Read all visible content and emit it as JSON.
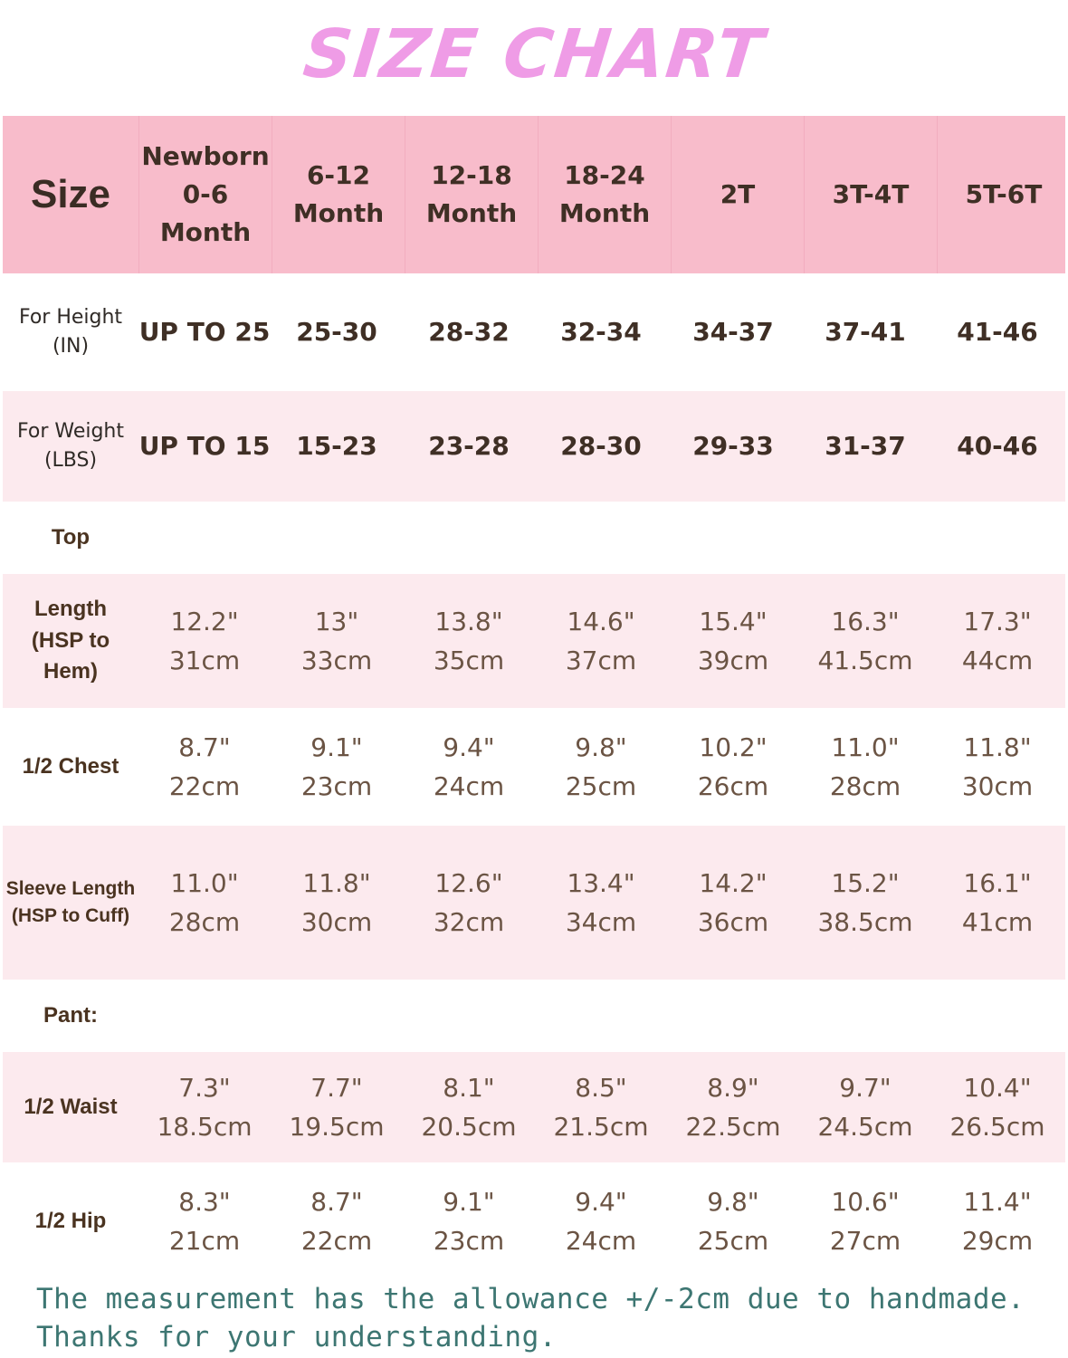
{
  "title": "SIZE CHART",
  "header": {
    "label": "Size",
    "sizes": [
      "Newborn\n0-6\nMonth",
      "6-12\nMonth",
      "12-18\nMonth",
      "18-24\nMonth",
      "2T",
      "3T-4T",
      "5T-6T"
    ]
  },
  "rows": [
    {
      "label": "For Height\n(IN)",
      "values": [
        "UP TO 25",
        "25-30",
        "28-32",
        "32-34",
        "34-37",
        "37-41",
        "41-46"
      ]
    },
    {
      "label": "For Weight\n(LBS)",
      "values": [
        "UP TO 15",
        "15-23",
        "23-28",
        "28-30",
        "29-33",
        "31-37",
        "40-46"
      ]
    }
  ],
  "section_top": "Top",
  "top_rows": [
    {
      "label": "Length\n(HSP to\nHem)",
      "values": [
        "12.2\"\n31cm",
        "13\"\n33cm",
        "13.8\"\n35cm",
        "14.6\"\n37cm",
        "15.4\"\n39cm",
        "16.3\"\n41.5cm",
        "17.3\"\n44cm"
      ]
    },
    {
      "label": "1/2 Chest",
      "values": [
        "8.7\"\n22cm",
        "9.1\"\n23cm",
        "9.4\"\n24cm",
        "9.8\"\n25cm",
        "10.2\"\n26cm",
        "11.0\"\n28cm",
        "11.8\"\n30cm"
      ]
    },
    {
      "label": "Sleeve Length\n(HSP to Cuff)",
      "values": [
        "11.0\"\n28cm",
        "11.8\"\n30cm",
        "12.6\"\n32cm",
        "13.4\"\n34cm",
        "14.2\"\n36cm",
        "15.2\"\n38.5cm",
        "16.1\"\n41cm"
      ]
    }
  ],
  "section_pant": "Pant:",
  "pant_rows": [
    {
      "label": "1/2 Waist",
      "values": [
        "7.3\"\n18.5cm",
        "7.7\"\n19.5cm",
        "8.1\"\n20.5cm",
        "8.5\"\n21.5cm",
        "8.9\"\n22.5cm",
        "9.7\"\n24.5cm",
        "10.4\"\n26.5cm"
      ]
    },
    {
      "label": "1/2 Hip",
      "values": [
        "8.3\"\n21cm",
        "8.7\"\n22cm",
        "9.1\"\n23cm",
        "9.4\"\n24cm",
        "9.8\"\n25cm",
        "10.6\"\n27cm",
        "11.4\"\n29cm"
      ]
    }
  ],
  "footer": {
    "line1": "The measurement has the allowance +/-2cm due to handmade.",
    "line2": "Thanks for your understanding."
  },
  "colors": {
    "title": "#ef9ce6",
    "header_bg": "#f8bccb",
    "light_row_bg": "#fceaee",
    "footer_text": "#3d7672"
  }
}
